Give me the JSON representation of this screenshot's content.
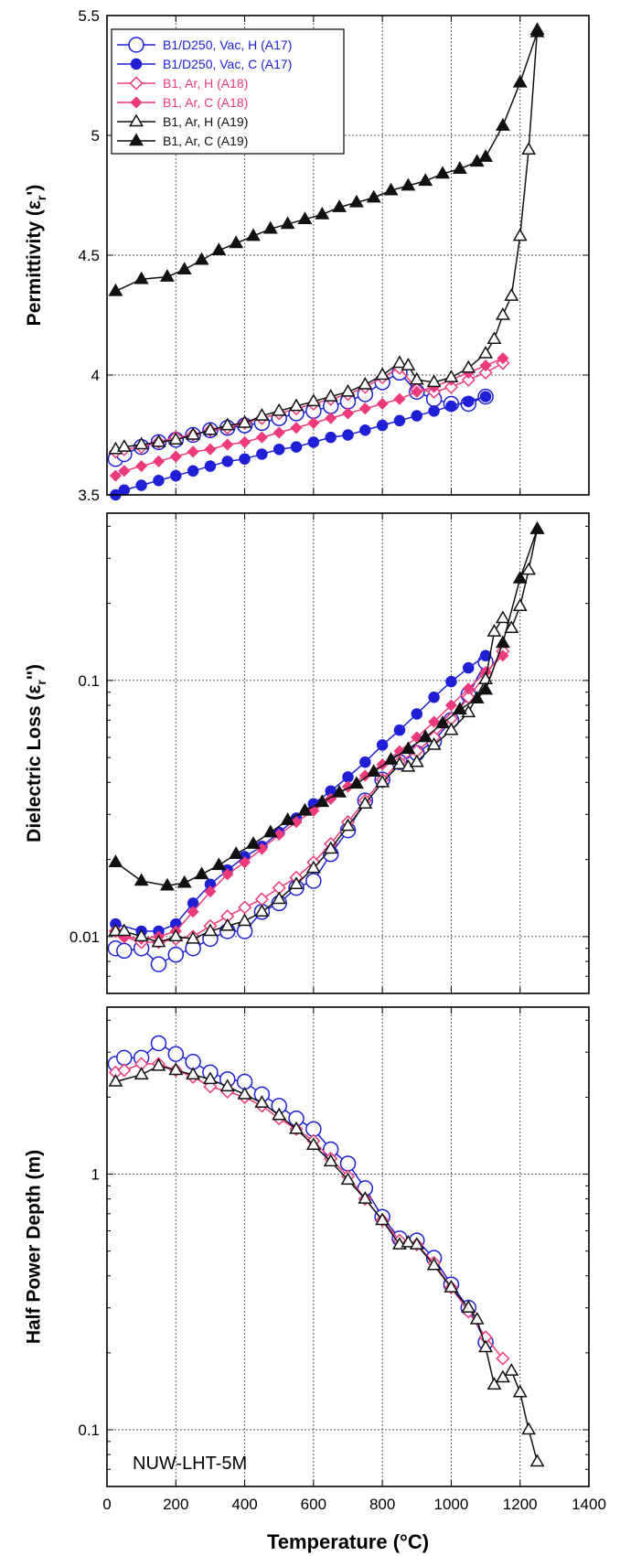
{
  "chart_data": [
    {
      "type": "line",
      "ylabel_main": "Permittivity (ε",
      "ylabel_sub": "r",
      "ylabel_end": "')",
      "ylim": [
        3.5,
        5.5
      ],
      "yscale": "linear",
      "yticks": [
        3.5,
        4,
        4.5,
        5,
        5.5
      ],
      "ytick_labels": [
        "3.5",
        "4",
        "4.5",
        "5",
        "5.5"
      ],
      "legend_position": "top-left",
      "series": [
        {
          "name": "B1/D250, Vac, H (A17)",
          "color": "#1f1fd6",
          "marker": "circle",
          "filled": false,
          "x": [
            25,
            50,
            100,
            150,
            200,
            250,
            300,
            350,
            400,
            450,
            500,
            550,
            600,
            650,
            700,
            750,
            800,
            850,
            900,
            950,
            1000,
            1050,
            1100
          ],
          "y": [
            3.65,
            3.67,
            3.7,
            3.72,
            3.73,
            3.75,
            3.77,
            3.78,
            3.79,
            3.8,
            3.82,
            3.84,
            3.85,
            3.87,
            3.89,
            3.92,
            3.97,
            4.01,
            3.93,
            3.9,
            3.88,
            3.88,
            3.91
          ]
        },
        {
          "name": "B1/D250, Vac, C (A17)",
          "color": "#1f1fd6",
          "marker": "circle",
          "filled": true,
          "x": [
            25,
            50,
            100,
            150,
            200,
            250,
            300,
            350,
            400,
            450,
            500,
            550,
            600,
            650,
            700,
            750,
            800,
            850,
            900,
            950,
            1000,
            1050,
            1100
          ],
          "y": [
            3.5,
            3.52,
            3.54,
            3.56,
            3.58,
            3.6,
            3.62,
            3.64,
            3.65,
            3.67,
            3.69,
            3.7,
            3.72,
            3.74,
            3.75,
            3.77,
            3.79,
            3.81,
            3.83,
            3.85,
            3.87,
            3.89,
            3.91
          ]
        },
        {
          "name": "B1, Ar, H (A18)",
          "color": "#ec3a7c",
          "marker": "diamond",
          "filled": false,
          "x": [
            25,
            50,
            100,
            150,
            200,
            250,
            300,
            350,
            400,
            450,
            500,
            550,
            600,
            650,
            700,
            750,
            800,
            850,
            900,
            950,
            1000,
            1050,
            1100,
            1150
          ],
          "y": [
            3.68,
            3.69,
            3.7,
            3.72,
            3.74,
            3.75,
            3.77,
            3.78,
            3.8,
            3.82,
            3.84,
            3.86,
            3.88,
            3.9,
            3.92,
            3.95,
            3.99,
            4.03,
            3.94,
            3.93,
            3.95,
            3.98,
            4.01,
            4.05
          ]
        },
        {
          "name": "B1, Ar, C (A18)",
          "color": "#ec3a7c",
          "marker": "diamond",
          "filled": true,
          "x": [
            25,
            50,
            100,
            150,
            200,
            250,
            300,
            350,
            400,
            450,
            500,
            550,
            600,
            650,
            700,
            750,
            800,
            850,
            900,
            950,
            1000,
            1050,
            1100,
            1150
          ],
          "y": [
            3.58,
            3.6,
            3.62,
            3.64,
            3.66,
            3.68,
            3.69,
            3.71,
            3.72,
            3.74,
            3.76,
            3.78,
            3.8,
            3.82,
            3.84,
            3.86,
            3.88,
            3.9,
            3.93,
            3.95,
            3.98,
            4.01,
            4.04,
            4.07
          ]
        },
        {
          "name": "B1, Ar, H (A19)",
          "color": "#111111",
          "marker": "triangle",
          "filled": false,
          "x": [
            25,
            50,
            100,
            150,
            200,
            250,
            300,
            350,
            400,
            450,
            500,
            550,
            600,
            650,
            700,
            750,
            800,
            850,
            875,
            900,
            950,
            1000,
            1050,
            1100,
            1125,
            1150,
            1175,
            1200,
            1225,
            1250
          ],
          "y": [
            3.69,
            3.7,
            3.71,
            3.72,
            3.73,
            3.75,
            3.77,
            3.79,
            3.8,
            3.83,
            3.85,
            3.87,
            3.89,
            3.91,
            3.93,
            3.96,
            4.0,
            4.05,
            4.04,
            3.98,
            3.97,
            3.99,
            4.03,
            4.09,
            4.15,
            4.25,
            4.33,
            4.58,
            4.94,
            5.44
          ]
        },
        {
          "name": "B1, Ar, C (A19)",
          "color": "#111111",
          "marker": "triangle",
          "filled": true,
          "x": [
            25,
            100,
            175,
            225,
            275,
            325,
            375,
            425,
            475,
            525,
            575,
            625,
            675,
            725,
            775,
            825,
            875,
            925,
            975,
            1025,
            1075,
            1100,
            1150,
            1200,
            1250
          ],
          "y": [
            4.35,
            4.4,
            4.41,
            4.44,
            4.48,
            4.52,
            4.55,
            4.58,
            4.61,
            4.63,
            4.65,
            4.67,
            4.7,
            4.72,
            4.74,
            4.77,
            4.79,
            4.81,
            4.84,
            4.86,
            4.89,
            4.91,
            5.04,
            5.22,
            5.43
          ]
        }
      ]
    },
    {
      "type": "line",
      "ylabel_main": "Dielectric Loss (ε",
      "ylabel_sub": "r",
      "ylabel_end": "'')",
      "ylim": [
        0.006,
        0.45
      ],
      "yscale": "log",
      "yticks": [
        0.01,
        0.1
      ],
      "ytick_labels": [
        "0.01",
        "0.1"
      ],
      "series": [
        {
          "name": "B1/D250, Vac, H (A17)",
          "color": "#1f1fd6",
          "marker": "circle",
          "filled": false,
          "x": [
            25,
            50,
            100,
            150,
            200,
            250,
            300,
            350,
            400,
            450,
            500,
            550,
            600,
            650,
            700,
            750,
            800,
            850,
            900,
            950,
            1000,
            1050,
            1100
          ],
          "y": [
            0.009,
            0.0088,
            0.009,
            0.0078,
            0.0085,
            0.009,
            0.0098,
            0.0105,
            0.0105,
            0.0125,
            0.0135,
            0.0155,
            0.0165,
            0.021,
            0.026,
            0.034,
            0.041,
            0.048,
            0.052,
            0.058,
            0.07,
            0.088,
            0.118
          ]
        },
        {
          "name": "B1/D250, Vac, C (A17)",
          "color": "#1f1fd6",
          "marker": "circle",
          "filled": true,
          "x": [
            25,
            100,
            150,
            200,
            250,
            300,
            350,
            400,
            450,
            500,
            550,
            600,
            650,
            700,
            750,
            800,
            850,
            900,
            950,
            1000,
            1050,
            1100
          ],
          "y": [
            0.0112,
            0.0105,
            0.0105,
            0.0112,
            0.0135,
            0.016,
            0.0182,
            0.0205,
            0.0225,
            0.0255,
            0.029,
            0.033,
            0.037,
            0.042,
            0.048,
            0.056,
            0.064,
            0.074,
            0.086,
            0.099,
            0.112,
            0.125
          ]
        },
        {
          "name": "B1, Ar, H (A18)",
          "color": "#ec3a7c",
          "marker": "diamond",
          "filled": false,
          "x": [
            25,
            50,
            100,
            150,
            200,
            250,
            300,
            350,
            400,
            450,
            500,
            550,
            600,
            650,
            700,
            750,
            800,
            850,
            900,
            950,
            1000,
            1050,
            1100,
            1150
          ],
          "y": [
            0.0105,
            0.01,
            0.0095,
            0.0095,
            0.0098,
            0.01,
            0.011,
            0.012,
            0.013,
            0.014,
            0.0155,
            0.017,
            0.0195,
            0.023,
            0.028,
            0.034,
            0.041,
            0.048,
            0.053,
            0.06,
            0.071,
            0.086,
            0.105,
            0.13
          ]
        },
        {
          "name": "B1, Ar, C (A18)",
          "color": "#ec3a7c",
          "marker": "diamond",
          "filled": true,
          "x": [
            25,
            50,
            100,
            150,
            200,
            250,
            300,
            350,
            400,
            450,
            500,
            550,
            600,
            650,
            700,
            750,
            800,
            850,
            900,
            950,
            1000,
            1050,
            1100,
            1150
          ],
          "y": [
            0.0105,
            0.01,
            0.0098,
            0.01,
            0.0105,
            0.0125,
            0.015,
            0.0175,
            0.0195,
            0.022,
            0.025,
            0.028,
            0.031,
            0.0345,
            0.0385,
            0.0425,
            0.047,
            0.053,
            0.06,
            0.069,
            0.08,
            0.093,
            0.108,
            0.125
          ]
        },
        {
          "name": "B1, Ar, H (A19)",
          "color": "#111111",
          "marker": "triangle",
          "filled": false,
          "x": [
            25,
            50,
            100,
            150,
            200,
            250,
            300,
            350,
            400,
            450,
            500,
            550,
            600,
            650,
            700,
            750,
            800,
            850,
            875,
            900,
            950,
            1000,
            1050,
            1100,
            1125,
            1150,
            1175,
            1200,
            1225,
            1250
          ],
          "y": [
            0.0105,
            0.0105,
            0.01,
            0.0095,
            0.01,
            0.0098,
            0.0105,
            0.011,
            0.0115,
            0.0125,
            0.014,
            0.016,
            0.0185,
            0.022,
            0.027,
            0.033,
            0.04,
            0.047,
            0.046,
            0.048,
            0.056,
            0.064,
            0.075,
            0.101,
            0.155,
            0.175,
            0.16,
            0.195,
            0.27,
            0.39
          ]
        },
        {
          "name": "B1, Ar, C (A19)",
          "color": "#111111",
          "marker": "triangle",
          "filled": true,
          "x": [
            25,
            100,
            175,
            225,
            275,
            325,
            375,
            425,
            475,
            525,
            575,
            625,
            675,
            725,
            775,
            825,
            875,
            925,
            975,
            1025,
            1075,
            1100,
            1150,
            1200,
            1250
          ],
          "y": [
            0.0195,
            0.0165,
            0.0158,
            0.0162,
            0.0175,
            0.019,
            0.021,
            0.023,
            0.0255,
            0.0285,
            0.031,
            0.0335,
            0.0365,
            0.0395,
            0.044,
            0.049,
            0.054,
            0.06,
            0.068,
            0.077,
            0.085,
            0.092,
            0.14,
            0.25,
            0.39
          ]
        }
      ]
    },
    {
      "type": "line",
      "ylabel": "Half Power Depth (m)",
      "ylim": [
        0.06,
        4.5
      ],
      "yscale": "log",
      "yticks": [
        0.1,
        1
      ],
      "ytick_labels": [
        "0.1",
        "1"
      ],
      "annotation": "NUW-LHT-5M",
      "xlabel": "Temperature (°C)",
      "xlim": [
        0,
        1400
      ],
      "xticks": [
        0,
        200,
        400,
        600,
        800,
        1000,
        1200,
        1400
      ],
      "xtick_labels": [
        "0",
        "200",
        "400",
        "600",
        "800",
        "1000",
        "1200",
        "1400"
      ],
      "series": [
        {
          "name": "B1/D250, Vac, H (A17)",
          "color": "#1f1fd6",
          "marker": "circle",
          "filled": false,
          "x": [
            25,
            50,
            100,
            150,
            200,
            250,
            300,
            350,
            400,
            450,
            500,
            550,
            600,
            650,
            700,
            750,
            800,
            850,
            900,
            950,
            1000,
            1050,
            1100
          ],
          "y": [
            2.7,
            2.85,
            2.85,
            3.25,
            2.95,
            2.75,
            2.5,
            2.35,
            2.3,
            2.05,
            1.85,
            1.65,
            1.5,
            1.25,
            1.1,
            0.88,
            0.68,
            0.56,
            0.55,
            0.47,
            0.37,
            0.3,
            0.22
          ]
        },
        {
          "name": "B1, Ar, H (A18)",
          "color": "#ec3a7c",
          "marker": "diamond",
          "filled": false,
          "x": [
            25,
            50,
            100,
            150,
            200,
            250,
            300,
            350,
            400,
            450,
            500,
            550,
            600,
            650,
            700,
            750,
            800,
            850,
            900,
            950,
            1000,
            1050,
            1100,
            1150
          ],
          "y": [
            2.5,
            2.55,
            2.7,
            2.7,
            2.55,
            2.4,
            2.2,
            2.1,
            2.0,
            1.85,
            1.65,
            1.5,
            1.35,
            1.15,
            0.98,
            0.8,
            0.66,
            0.55,
            0.53,
            0.45,
            0.36,
            0.29,
            0.23,
            0.19
          ]
        },
        {
          "name": "B1, Ar, H (A19)",
          "color": "#111111",
          "marker": "triangle",
          "filled": false,
          "x": [
            25,
            100,
            150,
            200,
            250,
            300,
            350,
            400,
            450,
            500,
            550,
            600,
            650,
            700,
            750,
            800,
            850,
            875,
            900,
            950,
            1000,
            1050,
            1075,
            1100,
            1125,
            1150,
            1175,
            1200,
            1225,
            1250
          ],
          "y": [
            2.3,
            2.45,
            2.65,
            2.55,
            2.45,
            2.35,
            2.2,
            2.05,
            1.9,
            1.7,
            1.5,
            1.3,
            1.12,
            0.95,
            0.8,
            0.66,
            0.53,
            0.54,
            0.53,
            0.44,
            0.36,
            0.3,
            0.27,
            0.21,
            0.15,
            0.16,
            0.17,
            0.14,
            0.1,
            0.075
          ]
        }
      ]
    }
  ]
}
